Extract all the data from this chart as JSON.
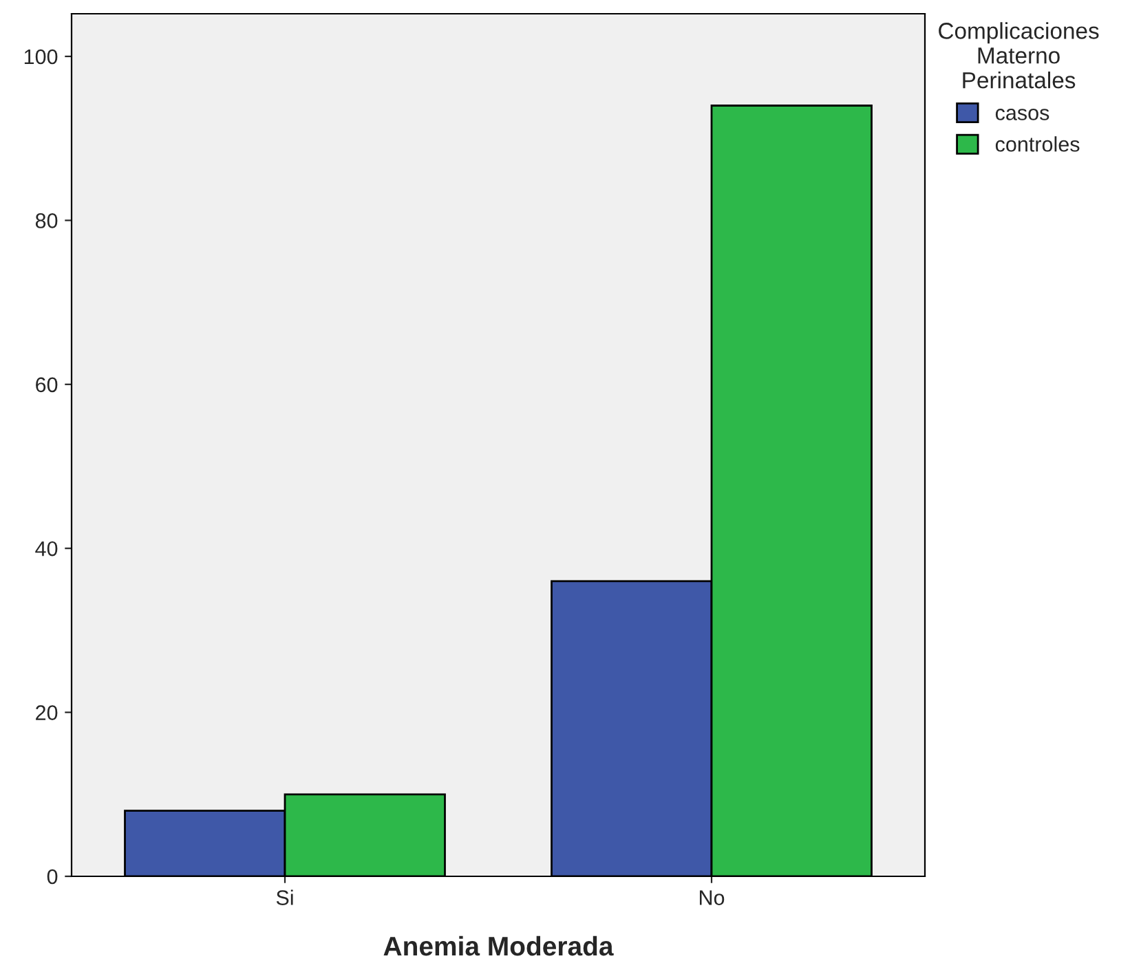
{
  "chart_data": {
    "type": "bar",
    "xlabel": "Anemia Moderada",
    "legend_title": "Complicaciones\nMaterno\nPerinatales",
    "categories": [
      "Si",
      "No"
    ],
    "series": [
      {
        "name": "casos",
        "color": "#3f58a8",
        "values": [
          8,
          36
        ]
      },
      {
        "name": "controles",
        "color": "#2db84a",
        "values": [
          10,
          94
        ]
      }
    ],
    "ylim": [
      0,
      105.2
    ],
    "yticks": [
      0,
      20,
      40,
      60,
      80,
      100
    ],
    "grid": false,
    "legend": "top right"
  }
}
